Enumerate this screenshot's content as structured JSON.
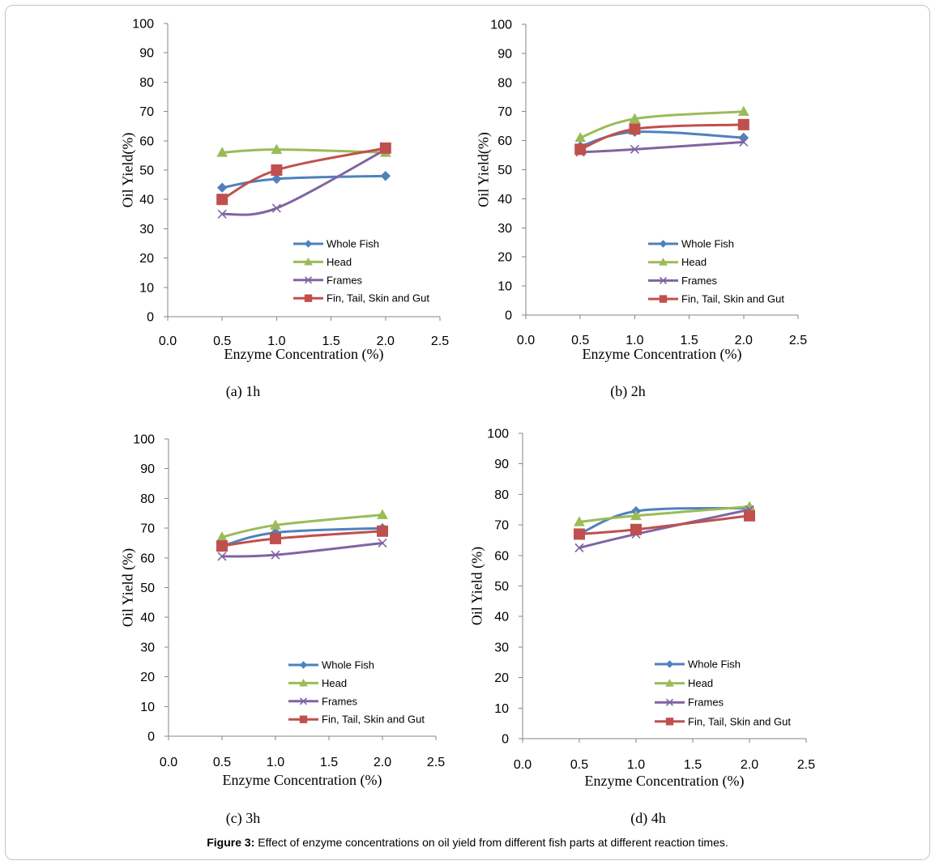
{
  "figure": {
    "caption_label": "Figure 3:",
    "caption_text": "Effect of enzyme concentrations on oil yield from different fish parts at different reaction times."
  },
  "chart_data": [
    {
      "type": "line",
      "subcaption": "(a) 1h",
      "xlabel": "Enzyme Concentration (%)",
      "ylabel": "Oil Yield(%)",
      "xlim": [
        0,
        2.5
      ],
      "ylim": [
        0,
        100
      ],
      "xticks": [
        "0.0",
        "0.5",
        "1.0",
        "1.5",
        "2.0",
        "2.5"
      ],
      "yticks": [
        "0",
        "10",
        "20",
        "30",
        "40",
        "50",
        "60",
        "70",
        "80",
        "90",
        "100"
      ],
      "grid": false,
      "legend": "inside-lower-right",
      "smooth": true,
      "x": [
        0.5,
        1.0,
        2.0
      ],
      "series": [
        {
          "name": "Whole Fish",
          "color": "#4F81BD",
          "marker": "diamond",
          "values": [
            44,
            47,
            48
          ]
        },
        {
          "name": "Head",
          "color": "#9BBB59",
          "marker": "triangle",
          "values": [
            56,
            57,
            56
          ]
        },
        {
          "name": "Frames",
          "color": "#8064A2",
          "marker": "x",
          "values": [
            35,
            37,
            57
          ]
        },
        {
          "name": "Fin, Tail, Skin and Gut",
          "color": "#C0504D",
          "marker": "square",
          "values": [
            40,
            50,
            57.5
          ]
        }
      ]
    },
    {
      "type": "line",
      "subcaption": "(b) 2h",
      "xlabel": "Enzyme Concentration (%)",
      "ylabel": "Oil Yield(%)",
      "xlim": [
        0,
        2.5
      ],
      "ylim": [
        0,
        100
      ],
      "xticks": [
        "0.0",
        "0.5",
        "1.0",
        "1.5",
        "2.0",
        "2.5"
      ],
      "yticks": [
        "0",
        "10",
        "20",
        "30",
        "40",
        "50",
        "60",
        "70",
        "80",
        "90",
        "100"
      ],
      "grid": false,
      "legend": "inside-lower-right",
      "smooth": true,
      "x": [
        0.5,
        1.0,
        2.0
      ],
      "series": [
        {
          "name": "Whole Fish",
          "color": "#4F81BD",
          "marker": "diamond",
          "values": [
            58,
            63,
            61
          ]
        },
        {
          "name": "Head",
          "color": "#9BBB59",
          "marker": "triangle",
          "values": [
            61,
            67.5,
            70
          ]
        },
        {
          "name": "Frames",
          "color": "#8064A2",
          "marker": "x",
          "values": [
            56,
            57,
            59.5
          ]
        },
        {
          "name": "Fin, Tail, Skin and Gut",
          "color": "#C0504D",
          "marker": "square",
          "values": [
            57,
            64,
            65.5
          ]
        }
      ]
    },
    {
      "type": "line",
      "subcaption": "(c) 3h",
      "xlabel": "Enzyme Concentration (%)",
      "ylabel": "Oil Yield (%)",
      "xlim": [
        0,
        2.5
      ],
      "ylim": [
        0,
        100
      ],
      "xticks": [
        "0.0",
        "0.5",
        "1.0",
        "1.5",
        "2.0",
        "2.5"
      ],
      "yticks": [
        "0",
        "10",
        "20",
        "30",
        "40",
        "50",
        "60",
        "70",
        "80",
        "90",
        "100"
      ],
      "grid": false,
      "legend": "inside-lower-right",
      "smooth": true,
      "x": [
        0.5,
        1.0,
        2.0
      ],
      "series": [
        {
          "name": "Whole Fish",
          "color": "#4F81BD",
          "marker": "diamond",
          "values": [
            64,
            68.5,
            70
          ]
        },
        {
          "name": "Head",
          "color": "#9BBB59",
          "marker": "triangle",
          "values": [
            67,
            71,
            74.5
          ]
        },
        {
          "name": "Frames",
          "color": "#8064A2",
          "marker": "x",
          "values": [
            60.5,
            61,
            65
          ]
        },
        {
          "name": "Fin, Tail, Skin and Gut",
          "color": "#C0504D",
          "marker": "square",
          "values": [
            64,
            66.5,
            69
          ]
        }
      ]
    },
    {
      "type": "line",
      "subcaption": "(d) 4h",
      "xlabel": "Enzyme Concentration (%)",
      "ylabel": "Oil Yield (%)",
      "xlim": [
        0,
        2.5
      ],
      "ylim": [
        0,
        100
      ],
      "xticks": [
        "0.0",
        "0.5",
        "1.0",
        "1.5",
        "2.0",
        "2.5"
      ],
      "yticks": [
        "0",
        "10",
        "20",
        "30",
        "40",
        "50",
        "60",
        "70",
        "80",
        "90",
        "100"
      ],
      "grid": false,
      "legend": "inside-lower-right",
      "smooth": true,
      "x": [
        0.5,
        1.0,
        2.0
      ],
      "series": [
        {
          "name": "Whole Fish",
          "color": "#4F81BD",
          "marker": "diamond",
          "values": [
            67,
            74.5,
            75.5
          ]
        },
        {
          "name": "Head",
          "color": "#9BBB59",
          "marker": "triangle",
          "values": [
            71,
            73,
            76
          ]
        },
        {
          "name": "Frames",
          "color": "#8064A2",
          "marker": "x",
          "values": [
            62.5,
            67,
            75
          ]
        },
        {
          "name": "Fin, Tail, Skin and Gut",
          "color": "#C0504D",
          "marker": "square",
          "values": [
            67,
            68.5,
            73
          ]
        }
      ]
    }
  ]
}
